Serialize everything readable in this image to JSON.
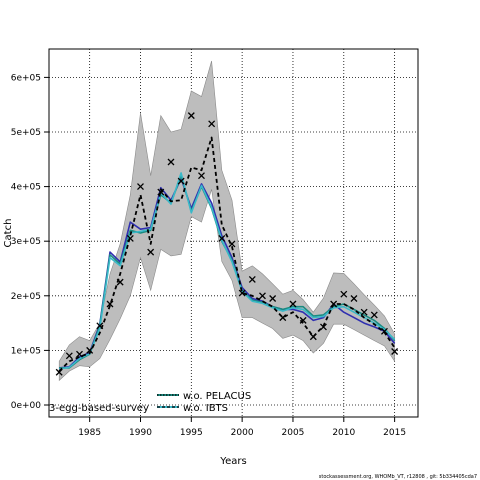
{
  "chart_data": {
    "type": "line",
    "xlabel": "Years",
    "ylabel": "Catch",
    "xlim": [
      1981,
      2017.3
    ],
    "ylim": [
      -22000,
      652000
    ],
    "x_ticks": [
      1985,
      1990,
      1995,
      2000,
      2005,
      2010,
      2015
    ],
    "y_ticks": [
      0,
      100000,
      200000,
      300000,
      400000,
      500000,
      600000
    ],
    "y_tick_labels": [
      "0e+00",
      "1e+05",
      "2e+05",
      "3e+05",
      "4e+05",
      "5e+05",
      "6e+05"
    ],
    "grid": true,
    "legend_placement": "bottom-left",
    "years": [
      1982,
      1983,
      1984,
      1985,
      1986,
      1987,
      1988,
      1989,
      1990,
      1991,
      1992,
      1993,
      1994,
      1995,
      1996,
      1997,
      1998,
      1999,
      2000,
      2001,
      2002,
      2003,
      2004,
      2005,
      2006,
      2007,
      2008,
      2009,
      2010,
      2011,
      2012,
      2013,
      2014,
      2015
    ],
    "band": {
      "upper": [
        80000,
        110000,
        125000,
        118000,
        150000,
        240000,
        295000,
        385000,
        535000,
        420000,
        530000,
        500000,
        505000,
        575000,
        565000,
        630000,
        430000,
        375000,
        245000,
        255000,
        240000,
        222000,
        203000,
        210000,
        193000,
        170000,
        196000,
        242000,
        241000,
        222000,
        202000,
        183000,
        163000,
        130000
      ],
      "lower": [
        45000,
        62000,
        72000,
        70000,
        85000,
        120000,
        158000,
        200000,
        270000,
        210000,
        285000,
        273000,
        276000,
        345000,
        335000,
        395000,
        263000,
        228000,
        160000,
        160000,
        150000,
        140000,
        122000,
        128000,
        118000,
        95000,
        113000,
        148000,
        148000,
        138000,
        128000,
        118000,
        108000,
        80000
      ]
    },
    "observed_catch": {
      "symbol": "x",
      "values": [
        60000,
        90000,
        93000,
        100000,
        145000,
        185000,
        225000,
        305000,
        400000,
        280000,
        390000,
        445000,
        410000,
        530000,
        420000,
        515000,
        305000,
        295000,
        205000,
        230000,
        200000,
        195000,
        160000,
        185000,
        155000,
        125000,
        143000,
        185000,
        203000,
        195000,
        170000,
        165000,
        135000,
        98000
      ]
    },
    "series": [
      {
        "color": "#000000",
        "style": "dashed",
        "values": [
          62000,
          80000,
          88000,
          95000,
          132000,
          182000,
          240000,
          310000,
          385000,
          295000,
          395000,
          373000,
          375000,
          435000,
          430000,
          490000,
          330000,
          290000,
          205000,
          200000,
          190000,
          180000,
          160000,
          170000,
          150000,
          125000,
          145000,
          185000,
          185000,
          175000,
          160000,
          148000,
          133000,
          105000
        ]
      },
      {
        "color": "#3030b0",
        "style": "solid",
        "values": [
          68000,
          70000,
          88000,
          96000,
          148000,
          280000,
          262000,
          335000,
          322000,
          325000,
          398000,
          375000,
          415000,
          360000,
          405000,
          370000,
          310000,
          270000,
          215000,
          195000,
          190000,
          180000,
          175000,
          175000,
          170000,
          155000,
          160000,
          185000,
          170000,
          160000,
          150000,
          143000,
          135000,
          113000
        ]
      },
      {
        "color": "#1a8b80",
        "style": "solid",
        "values": [
          68000,
          68000,
          83000,
          93000,
          145000,
          275000,
          258000,
          320000,
          315000,
          320000,
          385000,
          370000,
          420000,
          355000,
          400000,
          360000,
          300000,
          265000,
          210000,
          192000,
          188000,
          180000,
          175000,
          180000,
          180000,
          163000,
          165000,
          180000,
          185000,
          175000,
          165000,
          155000,
          140000,
          118000
        ]
      },
      {
        "color": "#3ab8c8",
        "style": "solid",
        "values": [
          66000,
          69000,
          85000,
          94000,
          140000,
          270000,
          255000,
          315000,
          318000,
          322000,
          388000,
          368000,
          425000,
          352000,
          402000,
          362000,
          302000,
          262000,
          208000,
          190000,
          186000,
          178000,
          172000,
          178000,
          175000,
          160000,
          162000,
          178000,
          180000,
          170000,
          160000,
          150000,
          138000,
          120000
        ]
      }
    ],
    "legend": [
      {
        "label": "3-egg-based-survey",
        "color": "#3ab8c8",
        "style": "none"
      },
      {
        "label": "w.o. PELACUS",
        "color": "#1a8b80",
        "style": "dotted"
      },
      {
        "label": "w.o. IBTS",
        "color": "#3ab8c8",
        "style": "solid"
      }
    ],
    "footnote": "stockassessment.org, WHOMb_VT, r12808 , git: 5b334405cda7"
  }
}
